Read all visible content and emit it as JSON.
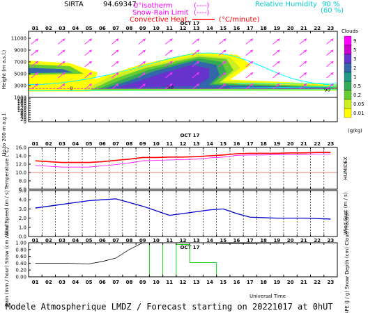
{
  "header": {
    "station": "SIRTA",
    "code": "94.69347",
    "legend_isotherm": "0°isotherm",
    "legend_isotherm_dash": "(----)",
    "legend_snow_rain": "Snow-Rain Limit",
    "legend_snow_rain_dash": "(----)",
    "legend_convective": "Convective Heat.",
    "legend_convective_unit": "(°C/minute)",
    "legend_rh": "Relative Humidity",
    "rh_value_1": "90 %",
    "rh_value_2": "(60 %)"
  },
  "footer": {
    "title": "Modele Atmospherique LMDZ / Forecast starting on 20221017 at 0hUT",
    "xlabel": "Universal Time"
  },
  "colors": {
    "temperature": "#ff0000",
    "humidex": "#ff00ff",
    "wind": "#0000cc",
    "rain": "#000000",
    "snow": "#00cc00",
    "arrow": "#ff33ff",
    "rh": "#00ffff"
  },
  "chart_data": [
    {
      "id": "clouds",
      "type": "heatmap",
      "date_label": "OCT 17",
      "x": [
        "01",
        "02",
        "03",
        "04",
        "05",
        "06",
        "07",
        "08",
        "09",
        "10",
        "11",
        "12",
        "13",
        "14",
        "15",
        "16",
        "17",
        "18",
        "19",
        "20",
        "21",
        "22",
        "23"
      ],
      "ylabel": "Height (m a.s.l.)",
      "yticks_upper": [
        "11000",
        "9000",
        "7000",
        "5000",
        "3000",
        "1000"
      ],
      "yticks_lower": [
        "200",
        "180",
        "160",
        "140",
        "120",
        "100",
        "80",
        "60",
        "40",
        "20",
        "0"
      ],
      "ylabel_lower": "Up to 200 m a.g.l.",
      "legend_title": "Clouds",
      "legend_levels": [
        "9",
        "5",
        "3",
        "2",
        "1",
        "0.5",
        "0.2",
        "0.05",
        "0.01"
      ],
      "legend_unit": "(g/kg)",
      "legend_colors": [
        "#ff00ff",
        "#cc00cc",
        "#6633cc",
        "#3366aa",
        "#229988",
        "#33aa55",
        "#66cc33",
        "#ccee22",
        "#ffff00"
      ],
      "isotherm_label": "0",
      "isotherm_height_m": 2500,
      "rh_labels": [
        "90",
        "60"
      ]
    },
    {
      "id": "temperature",
      "type": "line",
      "date_label": "OCT 17",
      "x": [
        "01",
        "02",
        "03",
        "04",
        "05",
        "06",
        "07",
        "08",
        "09",
        "10",
        "11",
        "12",
        "13",
        "14",
        "15",
        "16",
        "17",
        "18",
        "19",
        "20",
        "21",
        "22",
        "23"
      ],
      "ylabel": "Temperature (°C)",
      "ylabel_right": "HUMIDEX",
      "yticks": [
        "16.0",
        "14.0",
        "12.0",
        "10.0",
        "8.0",
        "6.0"
      ],
      "ylim": [
        6,
        16
      ],
      "series": [
        {
          "name": "Temperature",
          "values": [
            12.8,
            12.6,
            12.4,
            12.4,
            12.4,
            12.6,
            12.9,
            13.2,
            13.6,
            13.6,
            13.7,
            13.7,
            13.8,
            14.0,
            14.2,
            14.5,
            14.6,
            14.6,
            14.6,
            14.7,
            14.7,
            14.8,
            14.8
          ]
        },
        {
          "name": "HUMIDEX",
          "values": [
            11.7,
            11.5,
            11.3,
            11.3,
            11.3,
            11.6,
            11.9,
            12.3,
            12.8,
            12.9,
            13.0,
            13.1,
            13.2,
            13.5,
            13.7,
            14.1,
            14.2,
            14.2,
            14.3,
            14.3,
            14.3,
            14.4,
            14.4
          ]
        }
      ]
    },
    {
      "id": "wind",
      "type": "line",
      "x": [
        "01",
        "02",
        "03",
        "04",
        "05",
        "06",
        "07",
        "08",
        "09",
        "10",
        "11",
        "12",
        "13",
        "14",
        "15",
        "16",
        "17",
        "18",
        "19",
        "20",
        "21",
        "22",
        "23"
      ],
      "ylabel": "Wind Speed (m / s)",
      "ylabel_right": "Wind Gust (m / s)",
      "yticks": [
        "5.0",
        "4.0",
        "3.0",
        "2.0",
        "1.0",
        "0.0"
      ],
      "ylim": [
        0,
        5
      ],
      "series": [
        {
          "name": "Wind Speed",
          "values": [
            3.1,
            3.3,
            3.5,
            3.7,
            3.9,
            4.0,
            4.1,
            3.7,
            3.3,
            2.8,
            2.3,
            2.5,
            2.7,
            2.9,
            3.0,
            2.5,
            2.1,
            2.05,
            2.0,
            2.0,
            2.0,
            1.95,
            1.9
          ]
        }
      ]
    },
    {
      "id": "precip",
      "type": "line",
      "date_label": "OCT 17",
      "x": [
        "01",
        "02",
        "03",
        "04",
        "05",
        "06",
        "07",
        "08",
        "09",
        "10",
        "11",
        "12",
        "13",
        "14",
        "15",
        "16",
        "17",
        "18",
        "19",
        "20",
        "21",
        "22",
        "23"
      ],
      "ylabel": "Rain (mm / hour) Snow (cm / hour)",
      "ylabel_right": "CAPE (J / g) Snow Depth (cm) Cloud Fraction",
      "yticks": [
        "1.00",
        "0.80",
        "0.60",
        "0.40",
        "0.20",
        "0.00"
      ],
      "ylim": [
        0,
        1
      ],
      "series": [
        {
          "name": "Cloud Fraction",
          "values": [
            0.4,
            0.4,
            0.4,
            0.39,
            0.38,
            0.45,
            0.55,
            0.8,
            1.0,
            1.0,
            1.0,
            1.0,
            1.0,
            1.0,
            0.98,
            0.98,
            0.98,
            0.99,
            0.99,
            1.0,
            1.0,
            1.0,
            1.0
          ]
        },
        {
          "name": "Rain",
          "values": [
            0,
            0,
            0,
            0,
            0,
            0,
            0,
            0,
            0,
            1.0,
            0,
            0.95,
            0.42,
            0.42,
            0,
            0,
            0,
            0,
            0,
            0,
            0,
            0,
            0
          ]
        }
      ]
    }
  ]
}
